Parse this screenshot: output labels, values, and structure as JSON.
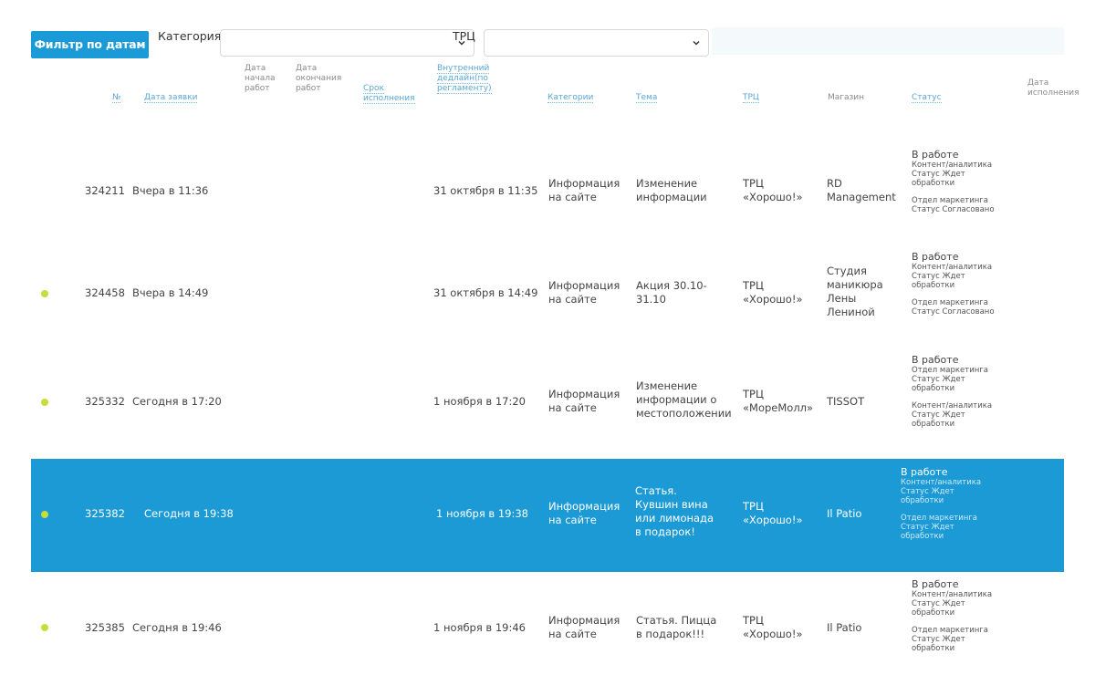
{
  "toolbar": {
    "filter_button": "Фильтр по датам",
    "category_label": "Категория",
    "category_value": "",
    "trc_label": "ТРЦ",
    "trc_value": ""
  },
  "columns": {
    "num": "№",
    "request_date": "Дата заявки",
    "work_start": "Дата начала работ",
    "work_end": "Дата окончания работ",
    "term": "Срок исполнения",
    "deadline": "Внутренний дедлайн(по регламенту)",
    "categories": "Категории",
    "topic": "Тема",
    "trc": "ТРЦ",
    "store": "Магазин",
    "status": "Статус",
    "done_date": "Дата исполнения"
  },
  "rows": [
    {
      "dot": false,
      "selected": false,
      "num": "324211",
      "date": "Вчера в 11:36",
      "deadline": "31 октября в 11:35",
      "category": "Информация на сайте",
      "topic": "Изменение информации",
      "trc": "ТРЦ «Хорошо!»",
      "store": "RD Management",
      "status_main": "В работе",
      "status_sub1": "Контент/аналитика Статус Ждет обработки",
      "status_sub2": "Отдел маркетинга Статус Согласовано"
    },
    {
      "dot": true,
      "selected": false,
      "num": "324458",
      "date": "Вчера в 14:49",
      "deadline": "31 октября в 14:49",
      "category": "Информация на сайте",
      "topic": "Акция 30.10-31.10",
      "trc": "ТРЦ «Хорошо!»",
      "store": "Студия маникюра Лены Лениной",
      "status_main": "В работе",
      "status_sub1": "Контент/аналитика Статус Ждет обработки",
      "status_sub2": "Отдел маркетинга Статус Согласовано"
    },
    {
      "dot": true,
      "selected": false,
      "num": "325332",
      "date": "Сегодня в 17:20",
      "deadline": "1 ноября в 17:20",
      "category": "Информация на сайте",
      "topic": "Изменение информации о местоположении",
      "trc": "ТРЦ «МореМолл»",
      "store": "TISSOT",
      "status_main": "В работе",
      "status_sub1": "Отдел маркетинга Статус Ждет обработки",
      "status_sub2": "Контент/аналитика Статус Ждет обработки"
    },
    {
      "dot": true,
      "selected": true,
      "num": "325382",
      "date": "Сегодня в 19:38",
      "deadline": "1 ноября в 19:38",
      "category": "Информация на сайте",
      "topic": "Статья. Кувшин вина или лимонада в подарок!",
      "trc": "ТРЦ «Хорошо!»",
      "store": "Il Patio",
      "status_main": "В работе",
      "status_sub1": "Контент/аналитика Статус Ждет обработки",
      "status_sub2": "Отдел маркетинга Статус Ждет обработки"
    },
    {
      "dot": true,
      "selected": false,
      "num": "325385",
      "date": "Сегодня в 19:46",
      "deadline": "1 ноября в 19:46",
      "category": "Информация на сайте",
      "topic": "Статья. Пицца в подарок!!!",
      "trc": "ТРЦ «Хорошо!»",
      "store": "Il Patio",
      "status_main": "В работе",
      "status_sub1": "Контент/аналитика Статус Ждет обработки",
      "status_sub2": "Отдел маркетинга Статус Ждет обработки"
    }
  ],
  "colors": {
    "accent": "#1b9ad6",
    "dot": "#c8dc3c",
    "link": "#5aa7d6"
  }
}
